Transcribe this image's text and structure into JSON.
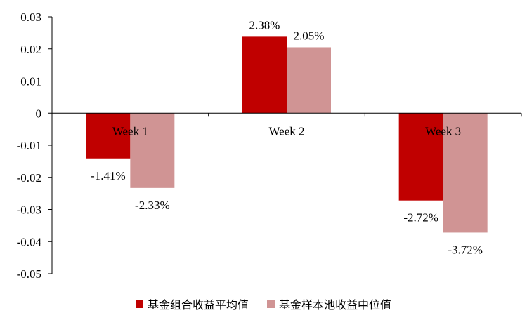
{
  "colors": {
    "series1": "#C00000",
    "series2": "#D09494",
    "axis": "#000000"
  },
  "chart_data": {
    "type": "bar",
    "categories": [
      "Week 1",
      "Week 2",
      "Week 3"
    ],
    "series": [
      {
        "name": "基金组合收益平均值",
        "values": [
          -0.0141,
          0.0238,
          -0.0272
        ],
        "labels": [
          "-1.41%",
          "2.38%",
          "-2.72%"
        ]
      },
      {
        "name": "基金样本池收益中位值",
        "values": [
          -0.0233,
          0.0205,
          -0.0372
        ],
        "labels": [
          "-2.33%",
          "2.05%",
          "-3.72%"
        ]
      }
    ],
    "ylim": [
      -0.05,
      0.03
    ],
    "yticks": [
      "0.03",
      "0.02",
      "0.01",
      "0",
      "-0.01",
      "-0.02",
      "-0.03",
      "-0.04",
      "-0.05"
    ],
    "grid": false,
    "legend_position": "bottom"
  }
}
